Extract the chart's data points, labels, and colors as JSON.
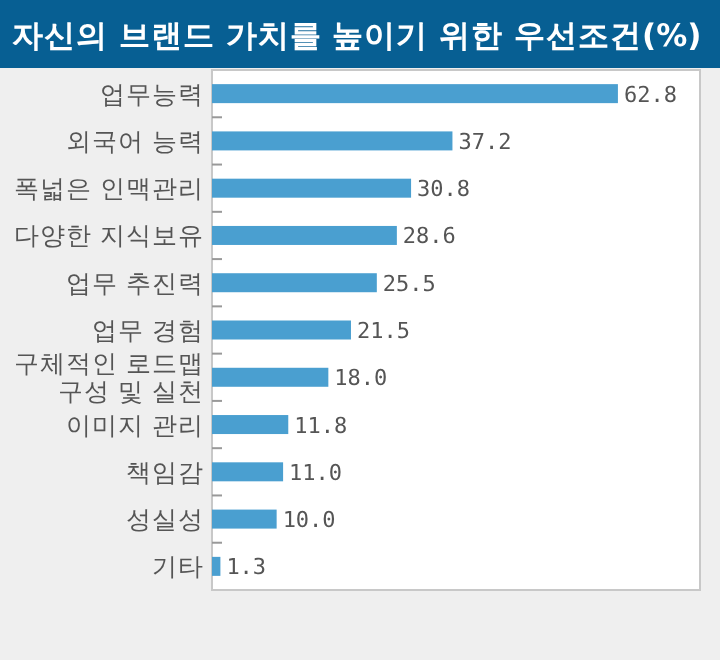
{
  "chart_data": {
    "type": "bar",
    "orientation": "horizontal",
    "title": "자신의 브랜드 가치를 높이기 위한 우선조건(%)",
    "categories": [
      "업무능력",
      "외국어 능력",
      "폭넓은 인맥관리",
      "다양한 지식보유",
      "업무 추진력",
      "업무 경험",
      "구체적인 로드맵 구성 및 실천",
      "이미지 관리",
      "책임감",
      "성실성",
      "기타"
    ],
    "values": [
      62.8,
      37.2,
      30.8,
      28.6,
      25.5,
      21.5,
      18.0,
      11.8,
      11.0,
      10.0,
      1.3
    ],
    "value_labels": [
      "62.8",
      "37.2",
      "30.8",
      "28.6",
      "25.5",
      "21.5",
      "18.0",
      "11.8",
      "11.0",
      "10.0",
      "1.3"
    ],
    "color": "#4a9fd0",
    "xlim": [
      0,
      75.5
    ]
  }
}
